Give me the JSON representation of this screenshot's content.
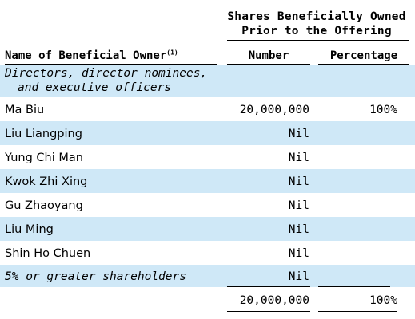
{
  "table": {
    "group_header_line1": "Shares Beneficially Owned",
    "group_header_line2": "Prior to the Offering",
    "columns": {
      "name": "Name of Beneficial Owner",
      "name_footnote": "(1)",
      "number": "Number",
      "percentage": "Percentage"
    },
    "section_directors_line1": "Directors, director nominees,",
    "section_directors_line2": "and executive officers",
    "rows": [
      {
        "name": "Ma Biu",
        "number": "20,000,000",
        "percentage": "100%"
      },
      {
        "name": "Liu Liangping",
        "number": "Nil",
        "percentage": ""
      },
      {
        "name": "Yung Chi Man",
        "number": "Nil",
        "percentage": ""
      },
      {
        "name": "Kwok Zhi Xing",
        "number": "Nil",
        "percentage": ""
      },
      {
        "name": "Gu Zhaoyang",
        "number": "Nil",
        "percentage": ""
      },
      {
        "name": "Liu Ming",
        "number": "Nil",
        "percentage": ""
      },
      {
        "name": "Shin Ho Chuen",
        "number": "Nil",
        "percentage": ""
      }
    ],
    "section_five_percent": "5% or greater shareholders",
    "five_percent_number": "Nil",
    "total": {
      "number": "20,000,000",
      "percentage": "100%"
    }
  }
}
